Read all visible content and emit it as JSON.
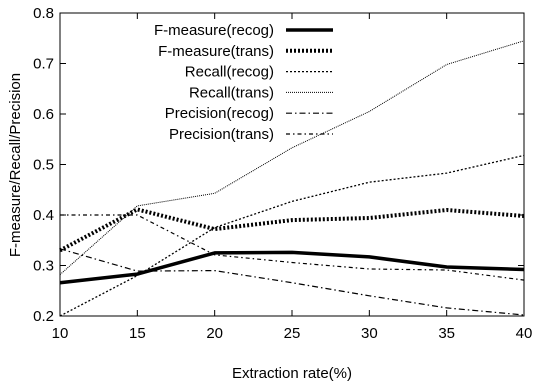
{
  "chart_data": {
    "type": "line",
    "xlabel": "Extraction rate(%)",
    "ylabel": "F-measure/Recall/Precision",
    "x": [
      10,
      15,
      20,
      25,
      30,
      35,
      40
    ],
    "xlim": [
      10,
      40
    ],
    "ylim": [
      0.2,
      0.8
    ],
    "xticks": [
      "10",
      "15",
      "20",
      "25",
      "30",
      "35",
      "40"
    ],
    "yticks": [
      "0.2",
      "0.3",
      "0.4",
      "0.5",
      "0.6",
      "0.7",
      "0.8"
    ],
    "grid": false,
    "legend_position": "top-left",
    "series": [
      {
        "name": "F-measure(recog)",
        "values": [
          0.266,
          0.283,
          0.325,
          0.326,
          0.317,
          0.297,
          0.292
        ],
        "style": "solid-thick"
      },
      {
        "name": "F-measure(trans)",
        "values": [
          0.33,
          0.411,
          0.372,
          0.39,
          0.394,
          0.41,
          0.398
        ],
        "style": "dotted-thick"
      },
      {
        "name": "Recall(recog)",
        "values": [
          0.2,
          0.28,
          0.375,
          0.427,
          0.465,
          0.483,
          0.518
        ],
        "style": "dotted"
      },
      {
        "name": "Recall(trans)",
        "values": [
          0.282,
          0.418,
          0.443,
          0.533,
          0.605,
          0.698,
          0.745
        ],
        "style": "dotted-dense"
      },
      {
        "name": "Precision(recog)",
        "values": [
          0.333,
          0.289,
          0.29,
          0.266,
          0.24,
          0.216,
          0.202
        ],
        "style": "dashdot"
      },
      {
        "name": "Precision(trans)",
        "values": [
          0.4,
          0.4,
          0.321,
          0.306,
          0.293,
          0.291,
          0.271
        ],
        "style": "dashdot-fine"
      }
    ]
  }
}
